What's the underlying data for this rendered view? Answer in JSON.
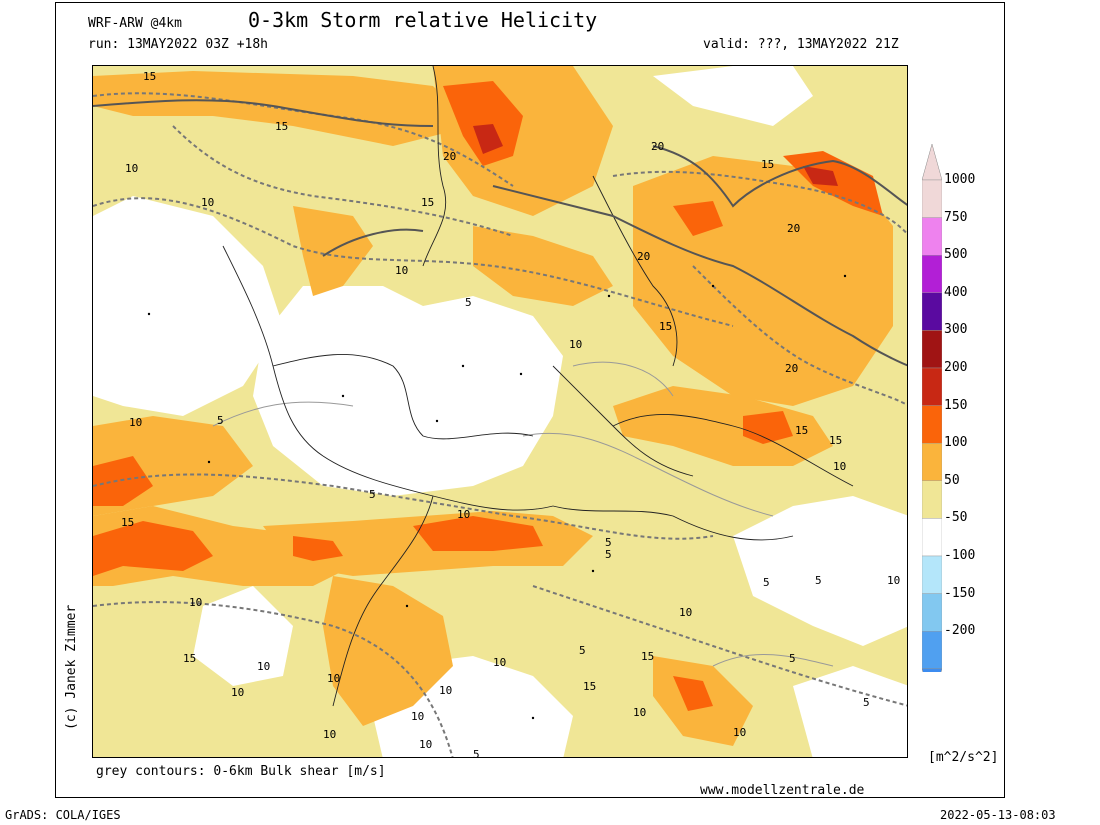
{
  "header": {
    "model": "WRF-ARW @4km",
    "title": "0-3km Storm relative Helicity",
    "run": "run: 13MAY2022 03Z +18h",
    "valid": "valid: ???, 13MAY2022 21Z"
  },
  "footer": {
    "contours_note": "grey contours: 0-6km Bulk shear [m/s]",
    "website": "www.modellzentrale.de",
    "software": "GrADS: COLA/IGES",
    "timestamp": "2022-05-13-08:03",
    "copyright": "(c) Janek Zimmer"
  },
  "legend": {
    "units": "[m^2/s^2]",
    "levels": [
      {
        "label": "1000",
        "color": "#f0d8d8"
      },
      {
        "label": "750",
        "color": "#ee82ee"
      },
      {
        "label": "500",
        "color": "#b21fd6"
      },
      {
        "label": "400",
        "color": "#5a0aa0"
      },
      {
        "label": "300",
        "color": "#a01414"
      },
      {
        "label": "200",
        "color": "#c82814"
      },
      {
        "label": "150",
        "color": "#fa640a"
      },
      {
        "label": "100",
        "color": "#fab43c"
      },
      {
        "label": "50",
        "color": "#f0e696"
      },
      {
        "label": "-50",
        "color": "#ffffff"
      },
      {
        "label": "-100",
        "color": "#b4e6fa"
      },
      {
        "label": "-150",
        "color": "#82c8f0"
      },
      {
        "label": "-200",
        "color": "#50a0f0"
      }
    ],
    "top_color": "#f0d8d8",
    "bottom_color": "#3c8cf0"
  },
  "map": {
    "contour_labels": [
      "15",
      "15",
      "10",
      "10",
      "20",
      "15",
      "15",
      "20",
      "15",
      "20",
      "20",
      "10",
      "5",
      "10",
      "15",
      "10",
      "15",
      "20",
      "5",
      "10",
      "5",
      "5",
      "15",
      "10",
      "10",
      "5",
      "10",
      "15",
      "10",
      "10",
      "10",
      "10",
      "10",
      "10",
      "5",
      "5",
      "10",
      "15",
      "10",
      "10",
      "5",
      "15",
      "10",
      "5",
      "5",
      "10",
      "5"
    ]
  }
}
